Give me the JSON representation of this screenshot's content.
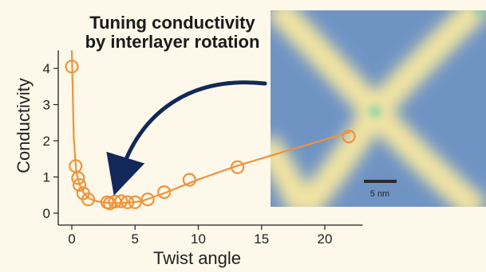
{
  "chart_data": {
    "type": "scatter",
    "title_lines": [
      "Tuning conductivity",
      "by interlayer rotation"
    ],
    "xlabel": "Twist angle",
    "ylabel": "Conductivity",
    "xlim": [
      -1,
      23
    ],
    "ylim": [
      -0.2,
      4.5
    ],
    "xticks": [
      0,
      5,
      10,
      15,
      20
    ],
    "yticks": [
      0,
      1,
      2,
      3,
      4
    ],
    "series": [
      {
        "color": "#f0923a",
        "points": [
          [
            0,
            4.05
          ],
          [
            0.3,
            1.3
          ],
          [
            0.5,
            0.97
          ],
          [
            0.6,
            0.78
          ],
          [
            0.9,
            0.55
          ],
          [
            1.3,
            0.38
          ],
          [
            2.8,
            0.3
          ],
          [
            3.0,
            0.27
          ],
          [
            3.4,
            0.32
          ],
          [
            3.9,
            0.33
          ],
          [
            4.4,
            0.3
          ],
          [
            5.0,
            0.3
          ],
          [
            6.0,
            0.38
          ],
          [
            7.3,
            0.58
          ],
          [
            9.3,
            0.92
          ],
          [
            13.1,
            1.27
          ],
          [
            21.9,
            2.12
          ]
        ]
      }
    ],
    "trend_line": {
      "color": "#f0923a",
      "x": [
        0.0,
        0.15,
        0.35,
        0.6,
        0.9,
        1.3,
        1.8,
        2.4,
        3.0,
        3.6,
        4.5,
        5.5,
        7.3,
        10,
        13,
        17,
        22
      ],
      "y": [
        4.5,
        2.1,
        1.15,
        0.8,
        0.58,
        0.42,
        0.34,
        0.3,
        0.28,
        0.28,
        0.29,
        0.33,
        0.55,
        0.93,
        1.3,
        1.72,
        2.24
      ]
    },
    "inset": {
      "scale_bar_label": "5 nm",
      "colors": {
        "background": "#6f94c4",
        "ridge": "#f2e4a2",
        "node": "#8fd2a6"
      }
    },
    "arrow_color": "#12285a"
  }
}
